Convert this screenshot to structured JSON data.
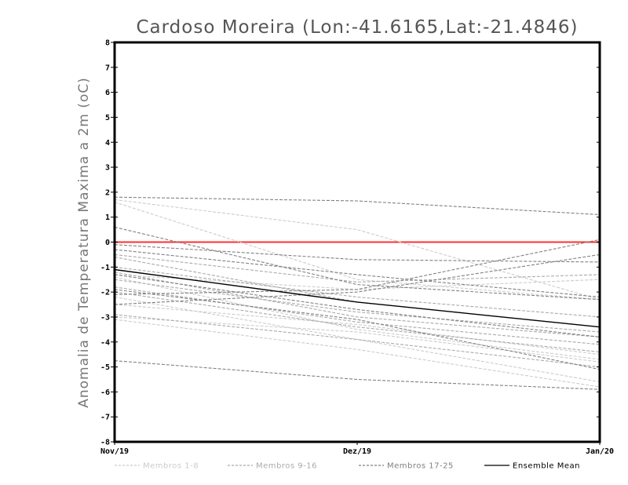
{
  "chart_data": {
    "type": "line",
    "title": "Cardoso Moreira (Lon:-41.6165,Lat:-21.4846)",
    "xlabel": "",
    "ylabel": "Anomalia de Temperatura Maxima a 2m (oC)",
    "categories": [
      "Nov/19",
      "Dez/19",
      "Jan/20"
    ],
    "ylim": [
      -8,
      8
    ],
    "yticks": [
      "8",
      "7",
      "6",
      "5",
      "4",
      "3",
      "2",
      "1",
      "0",
      "-1",
      "-2",
      "-3",
      "-4",
      "-5",
      "-6",
      "-7",
      "-8"
    ],
    "reference_line": {
      "value": 0,
      "color": "#ff3030"
    },
    "groups": [
      {
        "label": "Membros 1-8",
        "color": "#cccccc"
      },
      {
        "label": "Membros 9-16",
        "color": "#aaaaaa"
      },
      {
        "label": "Membros 17-25",
        "color": "#808080"
      },
      {
        "label": "Ensemble Mean",
        "color": "#000000"
      }
    ],
    "series": [
      {
        "group": 0,
        "values": [
          1.7,
          0.5,
          -2.3
        ]
      },
      {
        "group": 0,
        "values": [
          1.6,
          -1.5,
          -2.3
        ]
      },
      {
        "group": 0,
        "values": [
          -1.3,
          -1.9,
          -1.5
        ]
      },
      {
        "group": 0,
        "values": [
          -2.5,
          -3.3,
          -4.5
        ]
      },
      {
        "group": 0,
        "values": [
          -3.0,
          -3.6,
          -4.8
        ]
      },
      {
        "group": 0,
        "values": [
          -3.1,
          -4.3,
          -5.8
        ]
      },
      {
        "group": 0,
        "values": [
          -2.2,
          -3.9,
          -5.6
        ]
      },
      {
        "group": 0,
        "values": [
          -1.4,
          -3.5,
          -4.7
        ]
      },
      {
        "group": 1,
        "values": [
          -0.5,
          -1.6,
          -1.3
        ]
      },
      {
        "group": 1,
        "values": [
          -0.6,
          -2.4,
          -3.4
        ]
      },
      {
        "group": 1,
        "values": [
          -1.2,
          -3.0,
          -3.8
        ]
      },
      {
        "group": 1,
        "values": [
          -1.5,
          -2.8,
          -3.6
        ]
      },
      {
        "group": 1,
        "values": [
          -2.0,
          -3.4,
          -4.4
        ]
      },
      {
        "group": 1,
        "values": [
          -2.9,
          -3.9,
          -5.0
        ]
      },
      {
        "group": 1,
        "values": [
          -1.8,
          -3.2,
          -4.1
        ]
      },
      {
        "group": 1,
        "values": [
          -1.0,
          -2.2,
          -3.0
        ]
      },
      {
        "group": 2,
        "values": [
          1.8,
          1.65,
          1.1
        ]
      },
      {
        "group": 2,
        "values": [
          0.6,
          -1.7,
          -2.3
        ]
      },
      {
        "group": 2,
        "values": [
          -0.1,
          -0.7,
          -0.8
        ]
      },
      {
        "group": 2,
        "values": [
          -0.3,
          -1.3,
          -2.2
        ]
      },
      {
        "group": 2,
        "values": [
          -2.1,
          -1.9,
          0.1
        ]
      },
      {
        "group": 2,
        "values": [
          -2.5,
          -2.0,
          -0.5
        ]
      },
      {
        "group": 2,
        "values": [
          -4.75,
          -5.5,
          -5.9
        ]
      },
      {
        "group": 2,
        "values": [
          -1.3,
          -2.7,
          -3.8
        ]
      },
      {
        "group": 2,
        "values": [
          -1.9,
          -3.1,
          -5.1
        ]
      },
      {
        "group": 3,
        "values": [
          -1.1,
          -2.4,
          -3.4
        ]
      }
    ]
  }
}
